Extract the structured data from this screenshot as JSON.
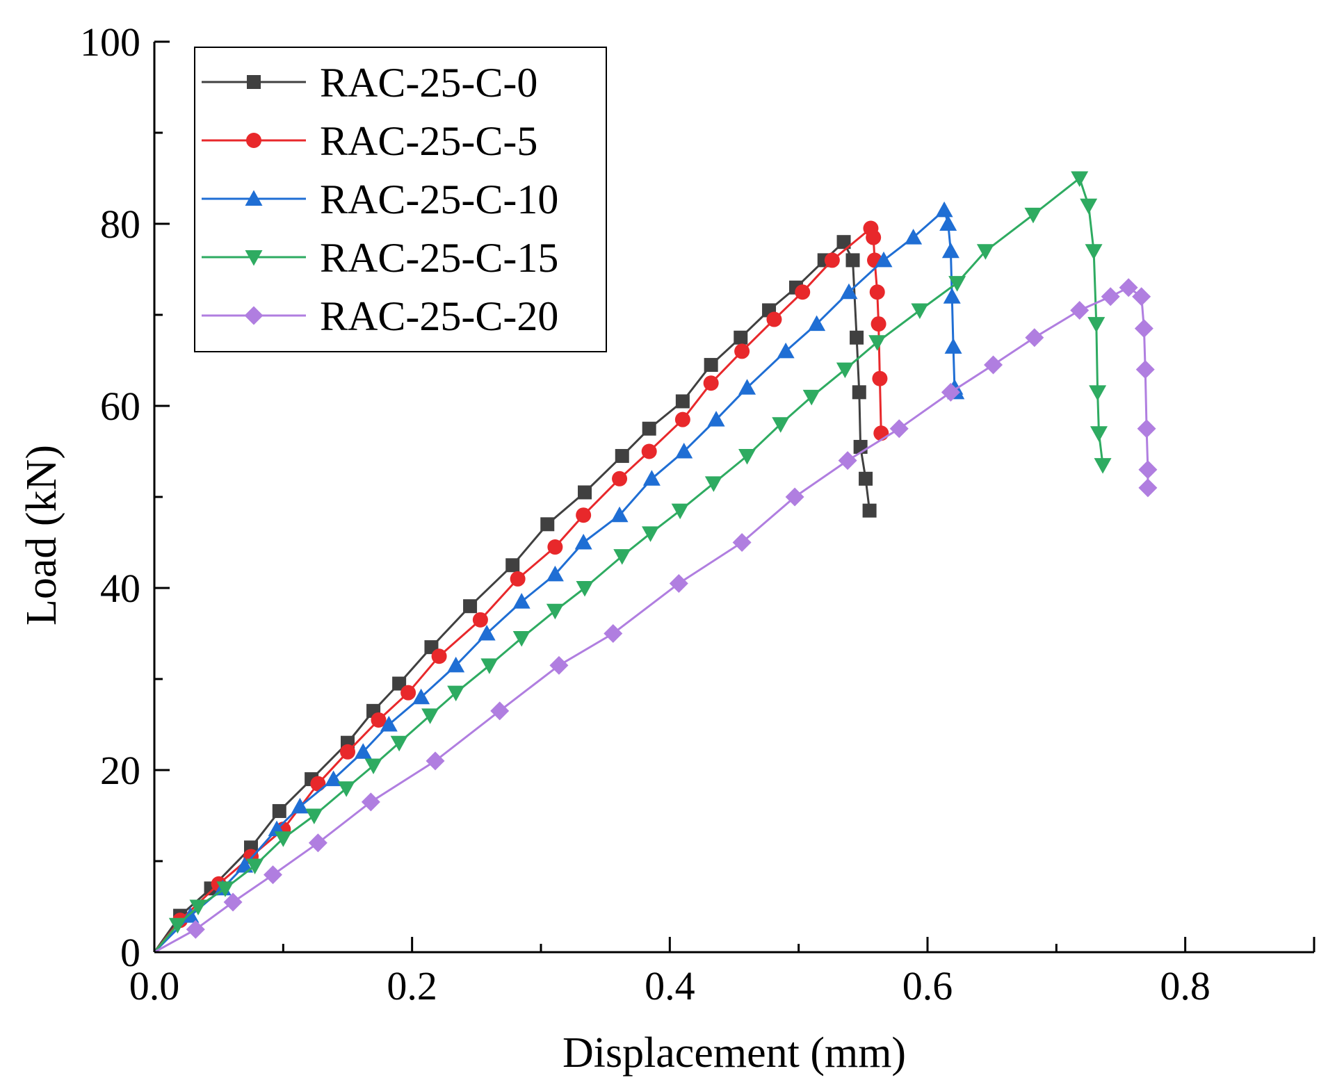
{
  "chart_data": {
    "type": "line",
    "title": "",
    "xlabel": "Displacement (mm)",
    "ylabel": "Load (kN)",
    "xlim": [
      0,
      0.9
    ],
    "ylim": [
      0,
      100
    ],
    "xticks": [
      0.0,
      0.2,
      0.4,
      0.6,
      0.8
    ],
    "xtick_labels": [
      "0.0",
      "0.2",
      "0.4",
      "0.6",
      "0.8"
    ],
    "yticks": [
      0,
      20,
      40,
      60,
      80,
      100
    ],
    "ytick_labels": [
      "0",
      "20",
      "40",
      "60",
      "80",
      "100"
    ],
    "grid": false,
    "legend_position": "top-left",
    "series": [
      {
        "name": "RAC-25-C-0",
        "color": "#404040",
        "marker": "square",
        "x": [
          0,
          0.02,
          0.044,
          0.075,
          0.097,
          0.122,
          0.15,
          0.17,
          0.19,
          0.215,
          0.245,
          0.278,
          0.305,
          0.334,
          0.363,
          0.384,
          0.41,
          0.432,
          0.455,
          0.477,
          0.498,
          0.52,
          0.535,
          0.542,
          0.545,
          0.547,
          0.548,
          0.552,
          0.555
        ],
        "y": [
          0,
          4,
          7,
          11.5,
          15.5,
          19,
          23,
          26.5,
          29.5,
          33.5,
          38,
          42.5,
          47,
          50.5,
          54.5,
          57.5,
          60.5,
          64.5,
          67.5,
          70.5,
          73,
          76,
          78,
          76,
          67.5,
          61.5,
          55.5,
          52,
          48.5
        ]
      },
      {
        "name": "RAC-25-C-5",
        "color": "#e8282b",
        "marker": "circle",
        "x": [
          0,
          0.02,
          0.05,
          0.075,
          0.1,
          0.127,
          0.15,
          0.174,
          0.197,
          0.221,
          0.253,
          0.282,
          0.311,
          0.333,
          0.361,
          0.384,
          0.41,
          0.432,
          0.456,
          0.481,
          0.503,
          0.526,
          0.556,
          0.558,
          0.559,
          0.561,
          0.562,
          0.563,
          0.564
        ],
        "y": [
          0,
          3.5,
          7.5,
          10.5,
          13.5,
          18.5,
          22,
          25.5,
          28.5,
          32.5,
          36.5,
          41,
          44.5,
          48,
          52,
          55,
          58.5,
          62.5,
          66,
          69.5,
          72.5,
          76,
          79.5,
          78.5,
          76,
          72.5,
          69,
          63,
          57
        ]
      },
      {
        "name": "RAC-25-C-10",
        "color": "#1f6ed4",
        "marker": "triangle-up",
        "x": [
          0,
          0.028,
          0.053,
          0.07,
          0.095,
          0.113,
          0.139,
          0.162,
          0.182,
          0.207,
          0.234,
          0.258,
          0.285,
          0.311,
          0.333,
          0.361,
          0.386,
          0.411,
          0.436,
          0.46,
          0.49,
          0.514,
          0.539,
          0.566,
          0.589,
          0.613,
          0.616,
          0.618,
          0.619,
          0.62,
          0.621,
          0.622
        ],
        "y": [
          0,
          4,
          7,
          9.5,
          13.5,
          16,
          19,
          22,
          25,
          28,
          31.5,
          35,
          38.5,
          41.5,
          45,
          48,
          52,
          55,
          58.5,
          62,
          66,
          69,
          72.5,
          76,
          78.5,
          81.5,
          80,
          77,
          72,
          66.5,
          62,
          61.5
        ]
      },
      {
        "name": "RAC-25-C-15",
        "color": "#2eab61",
        "marker": "triangle-down",
        "x": [
          0,
          0.018,
          0.034,
          0.055,
          0.078,
          0.1,
          0.124,
          0.149,
          0.17,
          0.19,
          0.214,
          0.234,
          0.26,
          0.285,
          0.311,
          0.334,
          0.363,
          0.385,
          0.408,
          0.434,
          0.46,
          0.486,
          0.51,
          0.536,
          0.561,
          0.594,
          0.623,
          0.645,
          0.682,
          0.718,
          0.725,
          0.729,
          0.731,
          0.732,
          0.733,
          0.736
        ],
        "y": [
          0,
          3,
          5,
          7,
          9.5,
          12.5,
          15,
          18,
          20.5,
          23,
          26,
          28.5,
          31.5,
          34.5,
          37.5,
          40,
          43.5,
          46,
          48.5,
          51.5,
          54.5,
          58,
          61,
          64,
          67,
          70.5,
          73.5,
          77,
          81,
          85,
          82,
          77,
          69,
          61.5,
          57,
          53.5
        ]
      },
      {
        "name": "RAC-25-C-20",
        "color": "#b07ee0",
        "marker": "diamond",
        "x": [
          0,
          0.032,
          0.061,
          0.092,
          0.127,
          0.168,
          0.218,
          0.268,
          0.314,
          0.356,
          0.407,
          0.456,
          0.497,
          0.538,
          0.578,
          0.618,
          0.651,
          0.683,
          0.718,
          0.742,
          0.756,
          0.766,
          0.768,
          0.769,
          0.77,
          0.771,
          0.771
        ],
        "y": [
          0,
          2.5,
          5.5,
          8.5,
          12,
          16.5,
          21,
          26.5,
          31.5,
          35,
          40.5,
          45,
          50,
          54,
          57.5,
          61.5,
          64.5,
          67.5,
          70.5,
          72,
          73,
          72,
          68.5,
          64,
          57.5,
          53,
          51
        ]
      }
    ]
  }
}
